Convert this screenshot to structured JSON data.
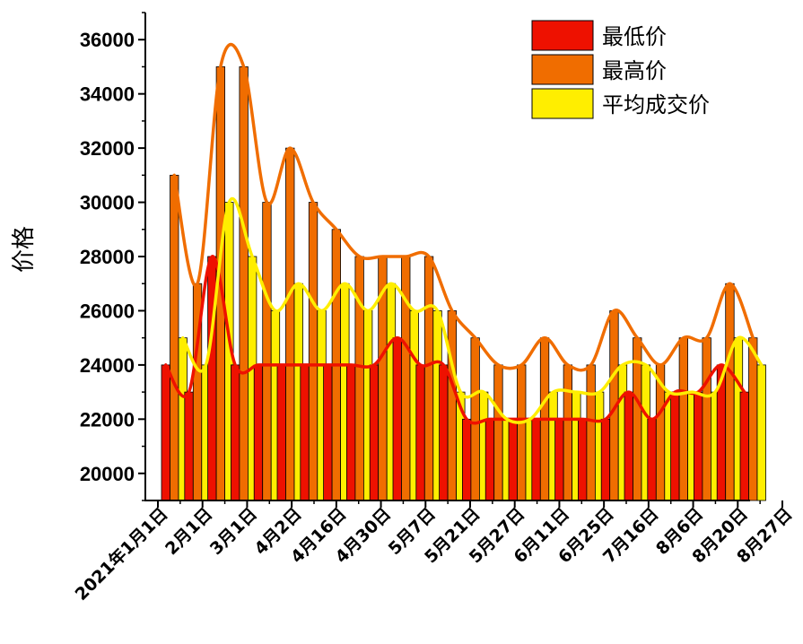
{
  "chart_data": {
    "type": "bar",
    "ylabel": "价格",
    "xlabel": "",
    "ylim": [
      19000,
      37000
    ],
    "yticks": [
      20000,
      22000,
      24000,
      26000,
      28000,
      30000,
      32000,
      34000,
      36000
    ],
    "xtick_labels": [
      "2021年1月1日",
      "2月1日",
      "3月1日",
      "4月2日",
      "4月16日",
      "4月30日",
      "5月7日",
      "5月21日",
      "5月27日",
      "6月11日",
      "6月25日",
      "7月16日",
      "8月6日",
      "8月20日",
      "8月27日"
    ],
    "legend_position": "top-right",
    "series": [
      {
        "name": "最低价",
        "color": "#ee1100",
        "values": [
          24000,
          23000,
          28000,
          24000,
          24000,
          24000,
          24000,
          24000,
          24000,
          24000,
          25000,
          24000,
          24000,
          22000,
          22000,
          22000,
          22000,
          22000,
          22000,
          22000,
          23000,
          22000,
          23000,
          23000,
          24000,
          23000
        ]
      },
      {
        "name": "最高价",
        "color": "#f06d00",
        "values": [
          31000,
          27000,
          35000,
          35000,
          30000,
          32000,
          30000,
          29000,
          28000,
          28000,
          28000,
          28000,
          26000,
          25000,
          24000,
          24000,
          25000,
          24000,
          24000,
          26000,
          25000,
          24000,
          25000,
          25000,
          27000,
          25000
        ]
      },
      {
        "name": "平均成交价",
        "color": "#ffee00",
        "values": [
          25000,
          24000,
          30000,
          28000,
          26000,
          27000,
          26000,
          27000,
          26000,
          27000,
          26000,
          26000,
          23000,
          23000,
          22000,
          22000,
          23000,
          23000,
          23000,
          24000,
          24000,
          23000,
          23000,
          23000,
          25000,
          24000
        ]
      }
    ]
  }
}
